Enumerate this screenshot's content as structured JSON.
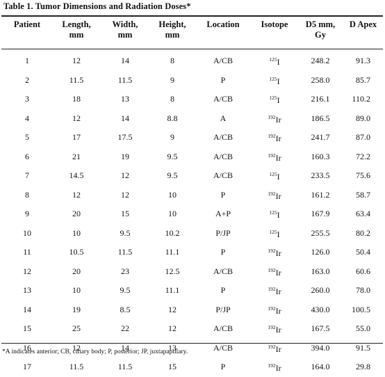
{
  "caption": "Table 1. Tumor Dimensions and Radiation Doses*",
  "columns": [
    {
      "l1": "Patient",
      "l2": ""
    },
    {
      "l1": "Length,",
      "l2": "mm"
    },
    {
      "l1": "Width,",
      "l2": "mm"
    },
    {
      "l1": "Height,",
      "l2": "mm"
    },
    {
      "l1": "Location",
      "l2": ""
    },
    {
      "l1": "Isotope",
      "l2": ""
    },
    {
      "l1": "D5 mm,",
      "l2": "Gy"
    },
    {
      "l1": "D Apex",
      "l2": ""
    }
  ],
  "rows": [
    {
      "patient": "1",
      "length": "12",
      "width": "14",
      "height": "8",
      "location": "A/CB",
      "iso_mass": "125",
      "iso_el": "I",
      "d5": "248.2",
      "dapex": "91.3"
    },
    {
      "patient": "2",
      "length": "11.5",
      "width": "11.5",
      "height": "9",
      "location": "P",
      "iso_mass": "125",
      "iso_el": "I",
      "d5": "258.0",
      "dapex": "85.7"
    },
    {
      "patient": "3",
      "length": "18",
      "width": "13",
      "height": "8",
      "location": "A/CB",
      "iso_mass": "125",
      "iso_el": "I",
      "d5": "216.1",
      "dapex": "110.2"
    },
    {
      "patient": "4",
      "length": "12",
      "width": "14",
      "height": "8.8",
      "location": "A",
      "iso_mass": "192",
      "iso_el": "Ir",
      "d5": "186.5",
      "dapex": "89.0"
    },
    {
      "patient": "5",
      "length": "17",
      "width": "17.5",
      "height": "9",
      "location": "A/CB",
      "iso_mass": "192",
      "iso_el": "Ir",
      "d5": "241.7",
      "dapex": "87.0"
    },
    {
      "patient": "6",
      "length": "21",
      "width": "19",
      "height": "9.5",
      "location": "A/CB",
      "iso_mass": "192",
      "iso_el": "Ir",
      "d5": "160.3",
      "dapex": "72.2"
    },
    {
      "patient": "7",
      "length": "14.5",
      "width": "12",
      "height": "9.5",
      "location": "A/CB",
      "iso_mass": "125",
      "iso_el": "I",
      "d5": "233.5",
      "dapex": "75.6"
    },
    {
      "patient": "8",
      "length": "12",
      "width": "12",
      "height": "10",
      "location": "P",
      "iso_mass": "192",
      "iso_el": "Ir",
      "d5": "161.2",
      "dapex": "58.7"
    },
    {
      "patient": "9",
      "length": "20",
      "width": "15",
      "height": "10",
      "location": "A+P",
      "iso_mass": "125",
      "iso_el": "I",
      "d5": "167.9",
      "dapex": "63.4"
    },
    {
      "patient": "10",
      "length": "10",
      "width": "9.5",
      "height": "10.2",
      "location": "P/JP",
      "iso_mass": "125",
      "iso_el": "I",
      "d5": "255.5",
      "dapex": "80.2"
    },
    {
      "patient": "11",
      "length": "10.5",
      "width": "11.5",
      "height": "11.1",
      "location": "P",
      "iso_mass": "192",
      "iso_el": "Ir",
      "d5": "126.0",
      "dapex": "50.4"
    },
    {
      "patient": "12",
      "length": "20",
      "width": "23",
      "height": "12.5",
      "location": "A/CB",
      "iso_mass": "192",
      "iso_el": "Ir",
      "d5": "163.0",
      "dapex": "60.6"
    },
    {
      "patient": "13",
      "length": "10",
      "width": "9.5",
      "height": "11.1",
      "location": "P",
      "iso_mass": "192",
      "iso_el": "Ir",
      "d5": "260.0",
      "dapex": "78.0"
    },
    {
      "patient": "14",
      "length": "19",
      "width": "8.5",
      "height": "12",
      "location": "P/JP",
      "iso_mass": "192",
      "iso_el": "Ir",
      "d5": "430.0",
      "dapex": "100.5"
    },
    {
      "patient": "15",
      "length": "25",
      "width": "22",
      "height": "12",
      "location": "A/CB",
      "iso_mass": "192",
      "iso_el": "Ir",
      "d5": "167.5",
      "dapex": "55.0"
    },
    {
      "patient": "16",
      "length": "12",
      "width": "14",
      "height": "13",
      "location": "A/CB",
      "iso_mass": "192",
      "iso_el": "Ir",
      "d5": "394.0",
      "dapex": "91.5"
    },
    {
      "patient": "17",
      "length": "11.5",
      "width": "11.5",
      "height": "15",
      "location": "P",
      "iso_mass": "192",
      "iso_el": "Ir",
      "d5": "164.0",
      "dapex": "29.8"
    }
  ],
  "footnote": "*A indicates anterior; CB, ciliary body; P, posterior; JP, juxtapapillary."
}
